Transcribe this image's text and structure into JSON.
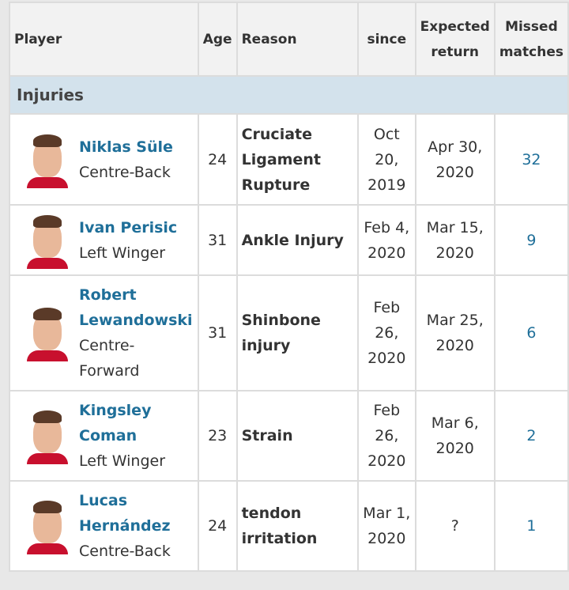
{
  "headers": {
    "player": "Player",
    "age": "Age",
    "reason": "Reason",
    "since": "since",
    "expected": "Expected return",
    "missed": "Missed matches"
  },
  "section": "Injuries",
  "rows": [
    {
      "name": "Niklas Süle",
      "position": "Centre-Back",
      "age": "24",
      "reason": "Cruciate Ligament Rupture",
      "since": "Oct 20, 2019",
      "expected": "Apr 30, 2020",
      "missed": "32"
    },
    {
      "name": "Ivan Perisic",
      "position": "Left Winger",
      "age": "31",
      "reason": "Ankle Injury",
      "since": "Feb 4, 2020",
      "expected": "Mar 15, 2020",
      "missed": "9"
    },
    {
      "name": "Robert Lewandowski",
      "position": "Centre-Forward",
      "age": "31",
      "reason": "Shinbone injury",
      "since": "Feb 26, 2020",
      "expected": "Mar 25, 2020",
      "missed": "6"
    },
    {
      "name": "Kingsley Coman",
      "position": "Left Winger",
      "age": "23",
      "reason": "Strain",
      "since": "Feb 26, 2020",
      "expected": "Mar 6, 2020",
      "missed": "2"
    },
    {
      "name": "Lucas Hernández",
      "position": "Centre-Back",
      "age": "24",
      "reason": "tendon irritation",
      "since": "Mar 1, 2020",
      "expected": "?",
      "missed": "1"
    }
  ]
}
